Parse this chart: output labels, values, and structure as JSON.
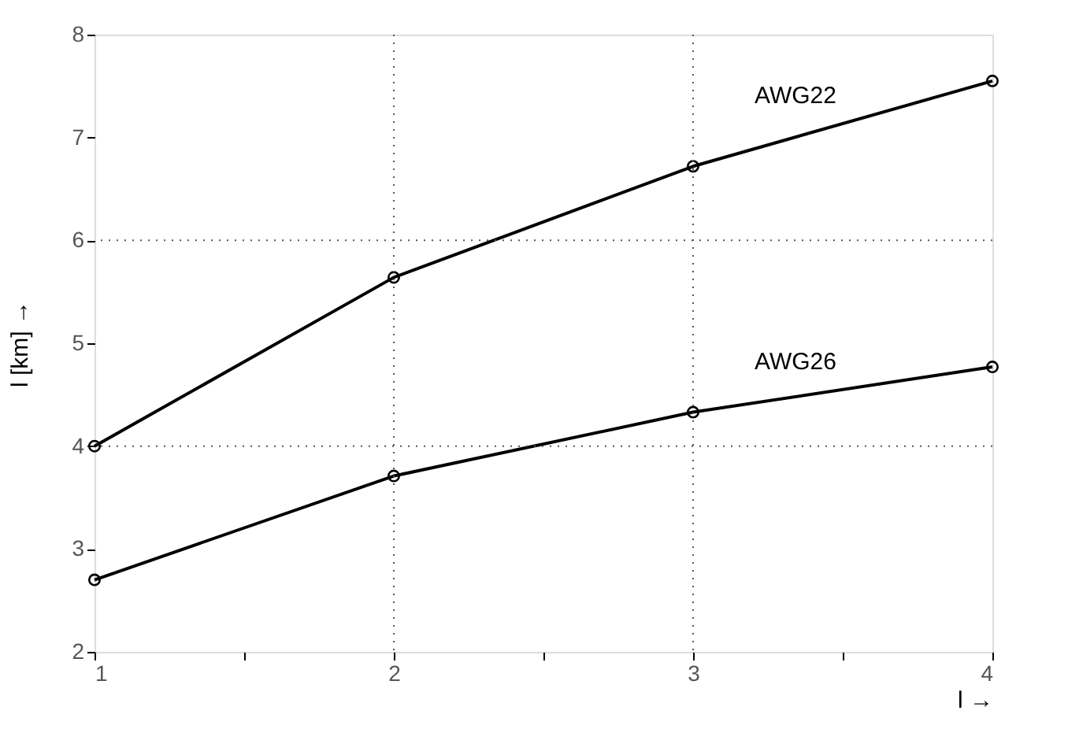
{
  "chart_data": {
    "type": "line",
    "xlabel": "l →",
    "ylabel": "l [km] →",
    "x": [
      1,
      2,
      3,
      4
    ],
    "series": [
      {
        "name": "AWG22",
        "color": "#000000",
        "values": [
          4.0,
          5.64,
          6.72,
          7.55
        ]
      },
      {
        "name": "AWG26",
        "color": "#000000",
        "values": [
          2.7,
          3.71,
          4.33,
          4.77
        ]
      }
    ],
    "xlim": [
      1,
      4
    ],
    "ylim": [
      2,
      8
    ],
    "xticks": [
      1,
      {
        "value": 1.5,
        "label": null
      },
      2,
      {
        "value": 2.5,
        "label": null
      },
      3,
      {
        "value": 3.5,
        "label": null
      },
      4
    ],
    "yticks": [
      2,
      3,
      4,
      5,
      6,
      7,
      8
    ],
    "ref_lines": [
      {
        "axis": "x",
        "value": 2,
        "label": null,
        "color": "#555555",
        "line_style": "dotted"
      },
      {
        "axis": "x",
        "value": 3,
        "label": null,
        "color": "#555555",
        "line_style": "dotted"
      },
      {
        "axis": "y",
        "value": 4,
        "label": null,
        "color": "#555555",
        "line_style": "dotted"
      },
      {
        "axis": "y",
        "value": 6,
        "label": null,
        "color": "#555555",
        "line_style": "dotted"
      }
    ],
    "marker": "circle",
    "line_style": "solid",
    "grid": false
  }
}
